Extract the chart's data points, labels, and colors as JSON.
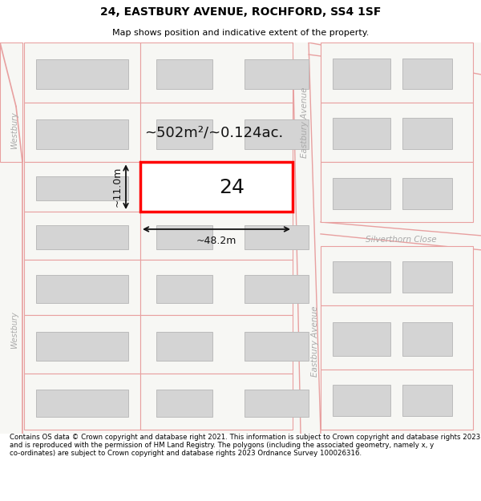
{
  "title": "24, EASTBURY AVENUE, ROCHFORD, SS4 1SF",
  "subtitle": "Map shows position and indicative extent of the property.",
  "footer": "Contains OS data © Crown copyright and database right 2021. This information is subject to Crown copyright and database rights 2023 and is reproduced with the permission of HM Land Registry. The polygons (including the associated geometry, namely x, y co-ordinates) are subject to Crown copyright and database rights 2023 Ordnance Survey 100026316.",
  "area_text": "~502m²/~0.124ac.",
  "width_text": "~48.2m",
  "height_text": "~11.0m",
  "number_text": "24",
  "road_label_eastbury_top": "Eastbury Avenue",
  "road_label_eastbury_bot": "Eastbury Avenue",
  "road_label_westbury": "Westbury",
  "road_label_silverthorn": "Silverthorn Close",
  "map_bg": "#f7f7f4",
  "road_line_color": "#e8a0a0",
  "building_fill": "#d4d4d4",
  "building_edge": "#bbbbbb",
  "plot_line_color": "#e8a0a0",
  "highlight_color": "#ff0000",
  "dim_color": "#111111",
  "text_color": "#111111",
  "road_label_color": "#aaaaaa",
  "title_fontsize": 10,
  "subtitle_fontsize": 8,
  "footer_fontsize": 6.2,
  "area_fontsize": 13,
  "number_fontsize": 18,
  "dim_fontsize": 9,
  "road_label_fontsize": 7.5
}
